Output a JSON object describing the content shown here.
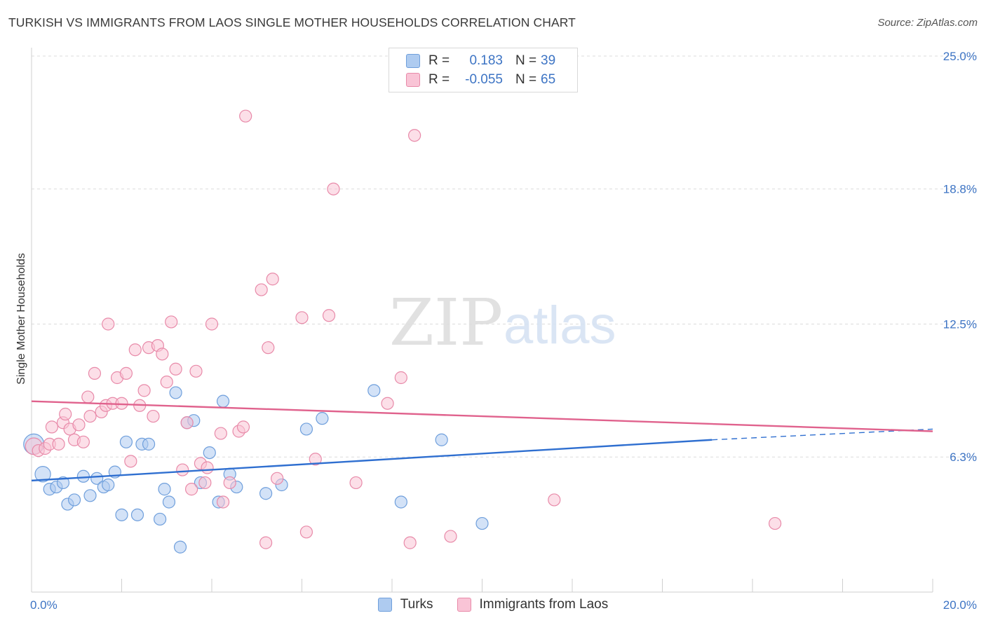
{
  "title": "TURKISH VS IMMIGRANTS FROM LAOS SINGLE MOTHER HOUSEHOLDS CORRELATION CHART",
  "source": "Source: ZipAtlas.com",
  "watermark": {
    "zip": "ZIP",
    "atlas": "atlas"
  },
  "legend": {
    "rows": [
      {
        "r_label": "R =",
        "r_value": "0.183",
        "n_label": "N =",
        "n_value": "39",
        "color": "#aecbf0",
        "border": "#6f9fdc"
      },
      {
        "r_label": "R =",
        "r_value": "-0.055",
        "n_label": "N =",
        "n_value": "65",
        "color": "#f9c4d6",
        "border": "#e88aa9"
      }
    ]
  },
  "bottom_legend": [
    {
      "label": "Turks",
      "color": "#aecbf0",
      "border": "#6f9fdc"
    },
    {
      "label": "Immigrants from Laos",
      "color": "#f9c4d6",
      "border": "#e88aa9"
    }
  ],
  "chart_data": {
    "type": "scatter",
    "title": "TURKISH VS IMMIGRANTS FROM LAOS SINGLE MOTHER HOUSEHOLDS CORRELATION CHART",
    "xlabel": "",
    "ylabel": "Single Mother Households",
    "xlim": [
      0,
      20
    ],
    "ylim": [
      0,
      25
    ],
    "x_tick_labels": [
      "0.0%",
      "20.0%"
    ],
    "y_ticks": [
      6.3,
      12.5,
      18.8,
      25.0
    ],
    "y_tick_labels": [
      "6.3%",
      "12.5%",
      "18.8%",
      "25.0%"
    ],
    "grid": true,
    "series": [
      {
        "name": "Turks",
        "color": "#aecbf0",
        "stroke": "#6f9fdc",
        "line_color": "#2f6fd0",
        "trend": {
          "x0": 0,
          "y0": 5.2,
          "x1": 15.1,
          "y1": 7.1,
          "dash_to_x": 20,
          "dash_to_y": 7.6
        },
        "points": [
          [
            0.05,
            6.9,
            1.7
          ],
          [
            0.25,
            5.5,
            1.3
          ],
          [
            0.4,
            4.8,
            1.0
          ],
          [
            0.55,
            4.9,
            1.0
          ],
          [
            0.7,
            5.1,
            1.0
          ],
          [
            0.8,
            4.1,
            1.0
          ],
          [
            0.95,
            4.3,
            1.0
          ],
          [
            1.15,
            5.4,
            1.0
          ],
          [
            1.3,
            4.5,
            1.0
          ],
          [
            1.45,
            5.3,
            1.0
          ],
          [
            1.6,
            4.9,
            1.0
          ],
          [
            1.7,
            5.0,
            1.0
          ],
          [
            1.85,
            5.6,
            1.0
          ],
          [
            2.0,
            3.6,
            1.0
          ],
          [
            2.1,
            7.0,
            1.0
          ],
          [
            2.35,
            3.6,
            1.0
          ],
          [
            2.45,
            6.9,
            1.0
          ],
          [
            2.6,
            6.9,
            1.0
          ],
          [
            2.85,
            3.4,
            1.0
          ],
          [
            2.95,
            4.8,
            1.0
          ],
          [
            3.05,
            4.2,
            1.0
          ],
          [
            3.2,
            9.3,
            1.0
          ],
          [
            3.3,
            2.1,
            1.0
          ],
          [
            3.45,
            7.9,
            1.0
          ],
          [
            3.6,
            8.0,
            1.0
          ],
          [
            3.75,
            5.1,
            1.0
          ],
          [
            3.95,
            6.5,
            1.0
          ],
          [
            4.15,
            4.2,
            1.0
          ],
          [
            4.25,
            8.9,
            1.0
          ],
          [
            4.4,
            5.5,
            1.0
          ],
          [
            4.55,
            4.9,
            1.0
          ],
          [
            5.2,
            4.6,
            1.0
          ],
          [
            5.55,
            5.0,
            1.0
          ],
          [
            6.1,
            7.6,
            1.0
          ],
          [
            6.45,
            8.1,
            1.0
          ],
          [
            7.6,
            9.4,
            1.0
          ],
          [
            8.2,
            4.2,
            1.0
          ],
          [
            9.1,
            7.1,
            1.0
          ],
          [
            10.0,
            3.2,
            1.0
          ]
        ]
      },
      {
        "name": "Immigrants from Laos",
        "color": "#f9c4d6",
        "stroke": "#e88aa9",
        "line_color": "#e0628d",
        "trend": {
          "x0": 0,
          "y0": 8.9,
          "x1": 20,
          "y1": 7.5
        },
        "points": [
          [
            0.05,
            6.8,
            1.4
          ],
          [
            0.15,
            6.6,
            1.0
          ],
          [
            0.3,
            6.7,
            1.0
          ],
          [
            0.4,
            6.9,
            1.0
          ],
          [
            0.45,
            7.7,
            1.0
          ],
          [
            0.6,
            6.9,
            1.0
          ],
          [
            0.7,
            7.9,
            1.0
          ],
          [
            0.75,
            8.3,
            1.0
          ],
          [
            0.85,
            7.6,
            1.0
          ],
          [
            0.95,
            7.1,
            1.0
          ],
          [
            1.05,
            7.8,
            1.0
          ],
          [
            1.15,
            7.0,
            1.0
          ],
          [
            1.25,
            9.1,
            1.0
          ],
          [
            1.3,
            8.2,
            1.0
          ],
          [
            1.4,
            10.2,
            1.0
          ],
          [
            1.55,
            8.4,
            1.0
          ],
          [
            1.65,
            8.7,
            1.0
          ],
          [
            1.7,
            12.5,
            1.0
          ],
          [
            1.8,
            8.8,
            1.0
          ],
          [
            1.9,
            10.0,
            1.0
          ],
          [
            2.0,
            8.8,
            1.0
          ],
          [
            2.1,
            10.2,
            1.0
          ],
          [
            2.2,
            6.1,
            1.0
          ],
          [
            2.3,
            11.3,
            1.0
          ],
          [
            2.4,
            8.7,
            1.0
          ],
          [
            2.5,
            9.4,
            1.0
          ],
          [
            2.6,
            11.4,
            1.0
          ],
          [
            2.7,
            8.2,
            1.0
          ],
          [
            2.8,
            11.5,
            1.0
          ],
          [
            2.9,
            11.1,
            1.0
          ],
          [
            3.0,
            9.8,
            1.0
          ],
          [
            3.1,
            12.6,
            1.0
          ],
          [
            3.2,
            10.4,
            1.0
          ],
          [
            3.35,
            5.7,
            1.0
          ],
          [
            3.45,
            7.9,
            1.0
          ],
          [
            3.55,
            4.8,
            1.0
          ],
          [
            3.65,
            10.3,
            1.0
          ],
          [
            3.75,
            6.0,
            1.0
          ],
          [
            3.85,
            5.1,
            1.0
          ],
          [
            3.9,
            5.8,
            1.0
          ],
          [
            4.0,
            12.5,
            1.0
          ],
          [
            4.2,
            7.4,
            1.0
          ],
          [
            4.25,
            4.2,
            1.0
          ],
          [
            4.4,
            5.1,
            1.0
          ],
          [
            4.6,
            7.5,
            1.0
          ],
          [
            4.7,
            7.7,
            1.0
          ],
          [
            4.75,
            22.2,
            1.0
          ],
          [
            5.1,
            14.1,
            1.0
          ],
          [
            5.2,
            2.3,
            1.0
          ],
          [
            5.25,
            11.4,
            1.0
          ],
          [
            5.35,
            14.6,
            1.0
          ],
          [
            5.45,
            5.3,
            1.0
          ],
          [
            6.0,
            12.8,
            1.0
          ],
          [
            6.1,
            2.8,
            1.0
          ],
          [
            6.3,
            6.2,
            1.0
          ],
          [
            6.6,
            12.9,
            1.0
          ],
          [
            6.7,
            18.8,
            1.0
          ],
          [
            7.2,
            5.1,
            1.0
          ],
          [
            7.9,
            8.8,
            1.0
          ],
          [
            8.2,
            10.0,
            1.0
          ],
          [
            8.4,
            2.3,
            1.0
          ],
          [
            8.5,
            21.3,
            1.0
          ],
          [
            9.3,
            2.6,
            1.0
          ],
          [
            11.6,
            4.3,
            1.0
          ],
          [
            16.5,
            3.2,
            1.0
          ]
        ]
      }
    ]
  }
}
